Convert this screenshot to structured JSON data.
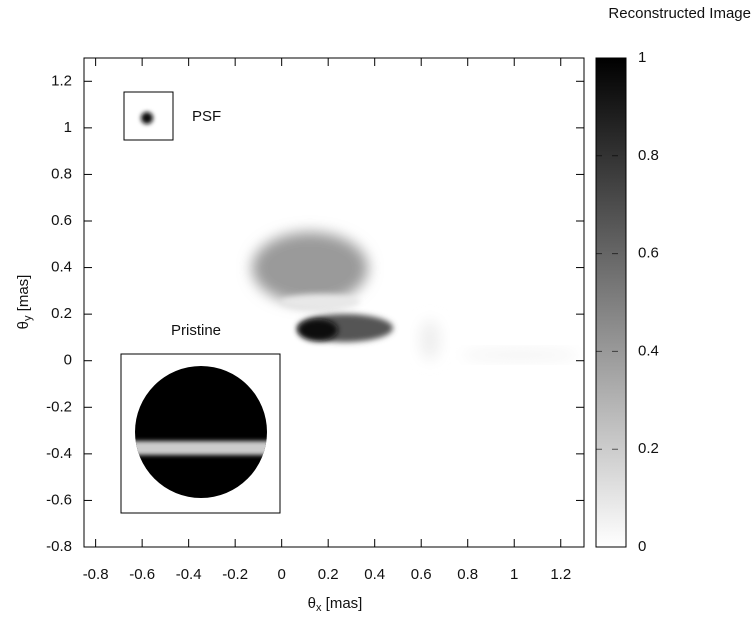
{
  "chart_data": {
    "type": "heatmap",
    "colorbar_title": "Reconstructed Image",
    "x_label": {
      "symbol": "θ",
      "subscript": "x",
      "unit": "[mas]"
    },
    "y_label": {
      "symbol": "θ",
      "subscript": "y",
      "unit": "[mas]"
    },
    "annotations": [
      "PSF",
      "Pristine"
    ],
    "xlim": [
      -0.85,
      1.3
    ],
    "ylim": [
      -0.8,
      1.3
    ],
    "xticks": [
      -0.8,
      -0.6,
      -0.4,
      -0.2,
      0,
      0.2,
      0.4,
      0.6,
      0.8,
      1,
      1.2
    ],
    "yticks": [
      -0.8,
      -0.6,
      -0.4,
      -0.2,
      0,
      0.2,
      0.4,
      0.6,
      0.8,
      1,
      1.2
    ],
    "clim": [
      0,
      1
    ],
    "cticks": [
      0,
      0.2,
      0.4,
      0.6,
      0.8,
      1
    ],
    "colormap": [
      "#ffffff",
      "#000000"
    ]
  }
}
